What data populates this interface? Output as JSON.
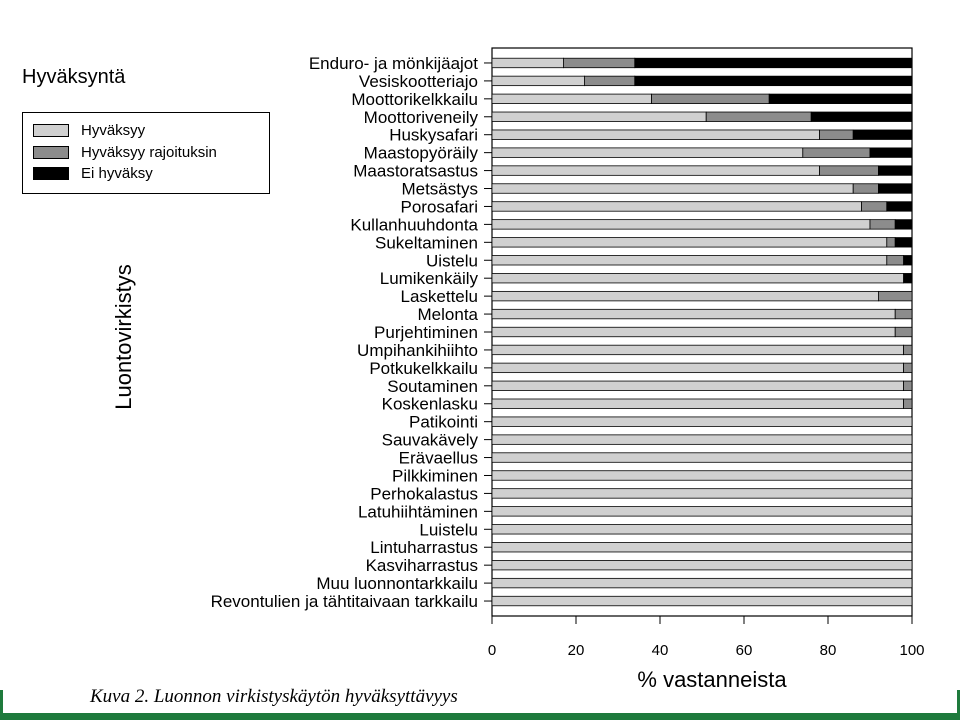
{
  "header": {
    "title": "Hyväksyntä",
    "side_label": "Luontovirkistys",
    "caption": "Kuva 2. Luonnon virkistyskäytön hyväksyttävyys"
  },
  "legend": [
    {
      "name": "Hyväksyy",
      "color": "#d0d0d0"
    },
    {
      "name": "Hyväksyy rajoituksin",
      "color": "#8c8c8c"
    },
    {
      "name": "Ei hyväksy",
      "color": "#000000"
    }
  ],
  "chart_data": {
    "type": "bar",
    "orientation": "horizontal",
    "stacked": true,
    "title": "",
    "xlabel": "% vastanneista",
    "ylabel": "",
    "xlim": [
      0,
      100
    ],
    "xticks": [
      0,
      20,
      40,
      60,
      80,
      100
    ],
    "grid": false,
    "categories": [
      "Enduro- ja mönkijäajot",
      "Vesiskootteriajo",
      "Moottorikelkkailu",
      "Moottoriveneily",
      "Huskysafari",
      "Maastopyöräily",
      "Maastoratsastus",
      "Metsästys",
      "Porosafari",
      "Kullanhuuhdonta",
      "Sukeltaminen",
      "Uistelu",
      "Lumikenkäily",
      "Laskettelu",
      "Melonta",
      "Purjehtiminen",
      "Umpihankihiihto",
      "Potkukelkkailu",
      "Soutaminen",
      "Koskenlasku",
      "Patikointi",
      "Sauvakävely",
      "Erävaellus",
      "Pilkkiminen",
      "Perhokalastus",
      "Latuhiihtäminen",
      "Luistelu",
      "Lintuharrastus",
      "Kasviharrastus",
      "Muu luonnontarkkailu",
      "Revontulien ja tähtitaivaan tarkkailu"
    ],
    "series": [
      {
        "name": "Hyväksyy",
        "color": "#d0d0d0",
        "values": [
          17,
          22,
          38,
          51,
          78,
          74,
          78,
          86,
          88,
          90,
          94,
          94,
          98,
          92,
          96,
          96,
          98,
          98,
          98,
          98,
          100,
          100,
          100,
          100,
          100,
          100,
          100,
          100,
          100,
          100,
          100
        ]
      },
      {
        "name": "Hyväksyy rajoituksin",
        "color": "#8c8c8c",
        "values": [
          17,
          12,
          28,
          25,
          8,
          16,
          14,
          6,
          6,
          6,
          2,
          4,
          0,
          8,
          4,
          4,
          2,
          2,
          2,
          2,
          0,
          0,
          0,
          0,
          0,
          0,
          0,
          0,
          0,
          0,
          0
        ]
      },
      {
        "name": "Ei hyväksy",
        "color": "#000000",
        "values": [
          66,
          66,
          34,
          24,
          14,
          10,
          8,
          8,
          6,
          4,
          4,
          2,
          2,
          0,
          0,
          0,
          0,
          0,
          0,
          0,
          0,
          0,
          0,
          0,
          0,
          0,
          0,
          0,
          0,
          0,
          0
        ]
      }
    ]
  }
}
